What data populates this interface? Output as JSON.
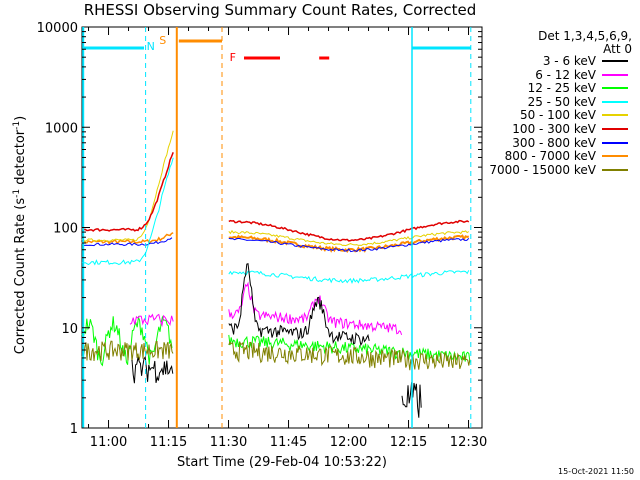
{
  "chart_data": {
    "type": "line",
    "title": "RHESSI Observing Summary Count Rates, Corrected",
    "xlabel": "Start Time (29-Feb-04 10:53:22)",
    "ylabel": "Corrected Count Rate (s",
    "ylabel_sup1": "-1",
    "ylabel_mid": " detector",
    "ylabel_sup2": "-1",
    "ylabel_end": ")",
    "yscale": "log",
    "ylim": [
      1,
      10000
    ],
    "xlim_minutes_after_start": [
      0,
      100
    ],
    "xticks": [
      "11:00",
      "11:15",
      "11:30",
      "11:45",
      "12:00",
      "12:15",
      "12:30"
    ],
    "yticks": [
      "1",
      "10",
      "100",
      "1000",
      "10000"
    ],
    "legend_title_line1": "Det 1,3,4,5,6,9,",
    "legend_title_line2": "Att 0",
    "legend_placement": "right",
    "series": [
      {
        "name": "3 - 6 keV",
        "color": "#000000"
      },
      {
        "name": "6 - 12 keV",
        "color": "#ff00ff"
      },
      {
        "name": "12 - 25 keV",
        "color": "#00ff00"
      },
      {
        "name": "25 - 50 keV",
        "color": "#00ffff"
      },
      {
        "name": "50 - 100 keV",
        "color": "#e6d200"
      },
      {
        "name": "100 - 300 keV",
        "color": "#e00000"
      },
      {
        "name": "300 - 800 keV",
        "color": "#0000ff"
      },
      {
        "name": "800 - 7000 keV",
        "color": "#ff8c00"
      },
      {
        "name": "7000 - 15000 keV",
        "color": "#808000"
      }
    ],
    "annotations": {
      "N": "N",
      "S": "S",
      "F": "F"
    },
    "night_color": "#00e5ff",
    "saa_color": "#ff8c00",
    "flare_color": "#ff0000"
  },
  "footer": {
    "timestamp": "15-Oct-2021 11:50"
  }
}
